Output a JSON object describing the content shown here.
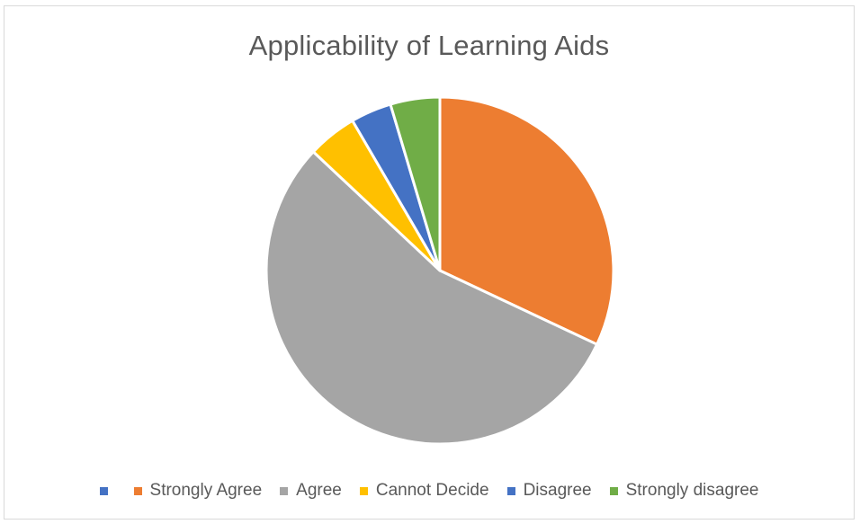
{
  "chart_data": {
    "type": "pie",
    "title": "Applicability of Learning Aids",
    "categories": [
      "",
      "Strongly Agree",
      "Agree",
      "Cannot Decide",
      "Disagree",
      "Strongly disagree"
    ],
    "values": [
      0,
      32,
      55,
      4.6,
      3.8,
      4.6
    ],
    "colors": [
      "#4472c4",
      "#ed7d31",
      "#a5a5a5",
      "#ffc000",
      "#4472c4",
      "#70ad47"
    ],
    "legend_position": "bottom"
  }
}
